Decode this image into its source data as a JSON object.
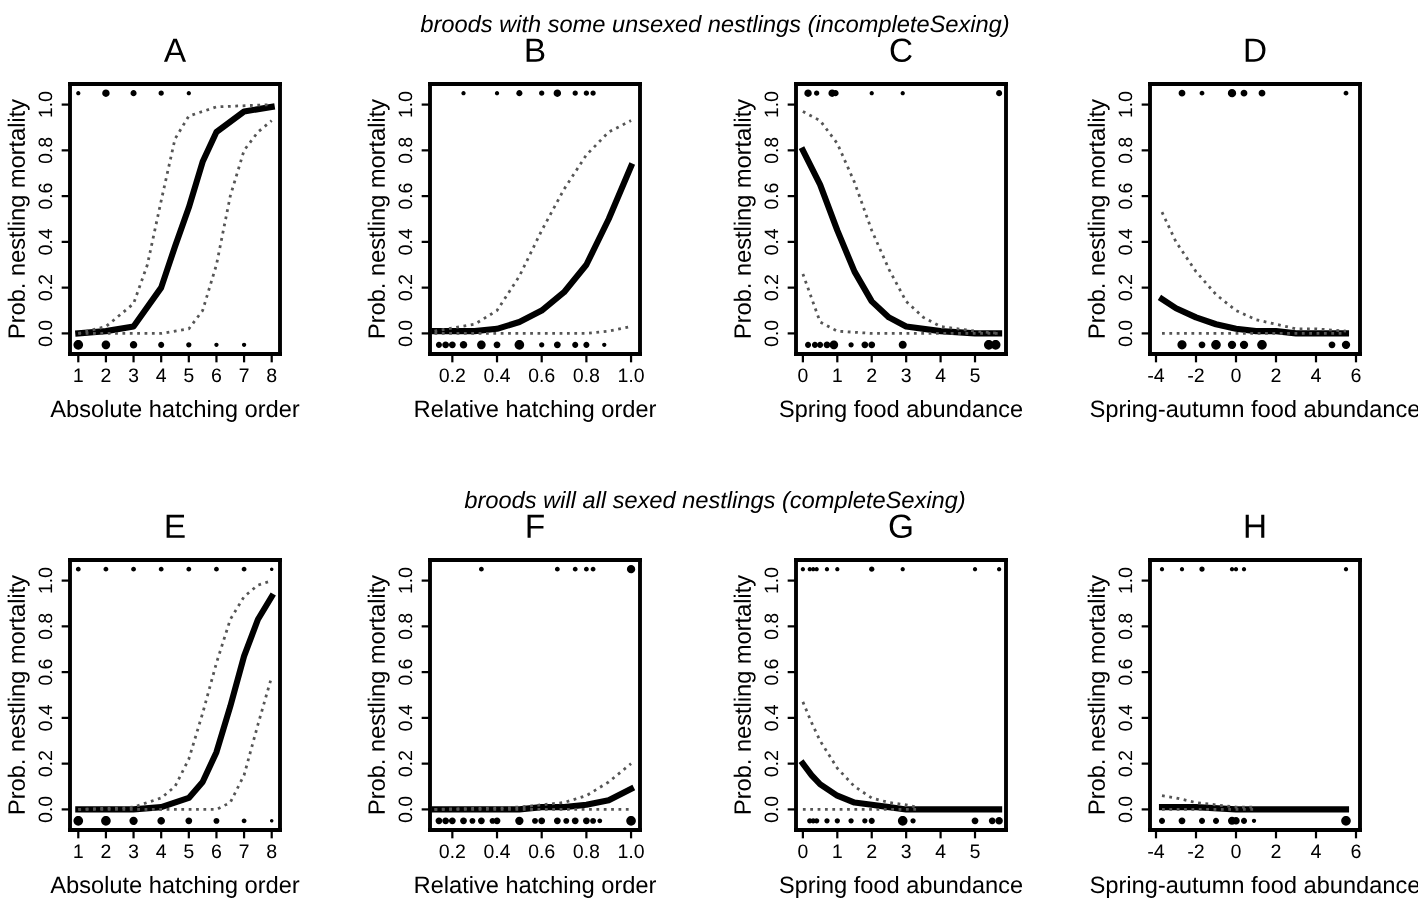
{
  "chart_data": [
    {
      "type": "other",
      "title": "broods with some unsexed nestlings (incompleteSexing)"
    },
    {
      "type": "line",
      "title": "A",
      "xlabel": "Absolute hatching order",
      "ylabel": "Prob. nestling mortality",
      "xlim": [
        0.7,
        8.3
      ],
      "xticks": [
        1,
        2,
        3,
        4,
        5,
        6,
        7,
        8
      ],
      "ylim": [
        -0.09,
        1.09
      ],
      "yticks": [
        {
          "value": 0,
          "label": "0.0"
        },
        {
          "value": 0.2,
          "label": "0.2"
        },
        {
          "value": 0.4,
          "label": "0.4"
        },
        {
          "value": 0.6,
          "label": "0.6"
        },
        {
          "value": 0.8,
          "label": "0.8"
        },
        {
          "value": 1,
          "label": "1.0"
        }
      ],
      "series": [
        {
          "color": "#000000",
          "line_style": "solid",
          "x": [
            1,
            2,
            3,
            4,
            4.5,
            5,
            5.5,
            6,
            7,
            8
          ],
          "values": [
            0.0,
            0.01,
            0.03,
            0.2,
            0.38,
            0.55,
            0.75,
            0.88,
            0.97,
            0.99
          ]
        },
        {
          "color": "#555555",
          "line_style": "dotted",
          "x": [
            1,
            2,
            3,
            3.5,
            4,
            4.5,
            5,
            6,
            8
          ],
          "values": [
            0.0,
            0.03,
            0.13,
            0.3,
            0.58,
            0.85,
            0.95,
            0.99,
            1.0
          ]
        },
        {
          "color": "#555555",
          "line_style": "dotted",
          "x": [
            1,
            4,
            5,
            5.5,
            6,
            6.5,
            7,
            7.5,
            8
          ],
          "values": [
            0,
            0.0,
            0.02,
            0.1,
            0.3,
            0.6,
            0.8,
            0.88,
            0.93
          ]
        },
        {
          "type": "bubble",
          "color": "#000000",
          "x": [
            1,
            2,
            3,
            4,
            5
          ],
          "values": [
            1.05,
            1.05,
            1.05,
            1.05,
            1.05
          ],
          "sizes": [
            0.2,
            0.6,
            0.4,
            0.3,
            0.2
          ]
        },
        {
          "type": "bubble",
          "color": "#000000",
          "x": [
            1,
            2,
            3,
            4,
            5,
            6,
            7
          ],
          "values": [
            -0.05,
            -0.05,
            -0.05,
            -0.05,
            -0.05,
            -0.05,
            -0.05
          ],
          "sizes": [
            1,
            0.8,
            0.6,
            0.4,
            0.3,
            0.2,
            0.2
          ]
        }
      ]
    },
    {
      "type": "line",
      "title": "B",
      "xlabel": "Relative hatching order",
      "ylabel": "Prob. nestling mortality",
      "xlim": [
        0.1,
        1.04
      ],
      "xticks": [
        {
          "value": 0.2,
          "label": "0.2"
        },
        {
          "value": 0.4,
          "label": "0.4"
        },
        {
          "value": 0.6,
          "label": "0.6"
        },
        {
          "value": 0.8,
          "label": "0.8"
        },
        {
          "value": 1.0,
          "label": "1.0"
        }
      ],
      "ylim": [
        -0.09,
        1.09
      ],
      "yticks": [
        {
          "value": 0,
          "label": "0.0"
        },
        {
          "value": 0.2,
          "label": "0.2"
        },
        {
          "value": 0.4,
          "label": "0.4"
        },
        {
          "value": 0.6,
          "label": "0.6"
        },
        {
          "value": 0.8,
          "label": "0.8"
        },
        {
          "value": 1,
          "label": "1.0"
        }
      ],
      "series": [
        {
          "color": "#000000",
          "line_style": "solid",
          "x": [
            0.12,
            0.3,
            0.4,
            0.5,
            0.6,
            0.7,
            0.8,
            0.9,
            1.0
          ],
          "values": [
            0.01,
            0.01,
            0.02,
            0.05,
            0.1,
            0.18,
            0.3,
            0.5,
            0.73
          ]
        },
        {
          "color": "#555555",
          "line_style": "dotted",
          "x": [
            0.12,
            0.3,
            0.4,
            0.5,
            0.6,
            0.7,
            0.8,
            0.9,
            1.0
          ],
          "values": [
            0.01,
            0.04,
            0.1,
            0.25,
            0.45,
            0.63,
            0.78,
            0.88,
            0.93
          ]
        },
        {
          "color": "#555555",
          "line_style": "dotted",
          "x": [
            0.12,
            0.8,
            0.9,
            1.0
          ],
          "values": [
            0,
            0,
            0.01,
            0.03
          ]
        },
        {
          "type": "bubble",
          "color": "#000000",
          "x": [
            0.25,
            0.4,
            0.5,
            0.6,
            0.67,
            0.75,
            0.8,
            0.83
          ],
          "values": [
            1.05,
            1.05,
            1.05,
            1.05,
            1.05,
            1.05,
            1.05,
            1.05
          ],
          "sizes": [
            0.2,
            0.2,
            0.4,
            0.3,
            0.6,
            0.3,
            0.3,
            0.3
          ]
        },
        {
          "type": "bubble",
          "color": "#000000",
          "x": [
            0.14,
            0.17,
            0.2,
            0.25,
            0.33,
            0.4,
            0.5,
            0.6,
            0.67,
            0.75,
            0.8,
            0.88
          ],
          "values": [
            -0.05,
            -0.05,
            -0.05,
            -0.05,
            -0.05,
            -0.05,
            -0.05,
            -0.05,
            -0.05,
            -0.05,
            -0.05,
            -0.05
          ],
          "sizes": [
            0.4,
            0.5,
            0.5,
            0.6,
            0.8,
            0.5,
            1,
            0.3,
            0.5,
            0.4,
            0.4,
            0.2
          ]
        }
      ]
    },
    {
      "type": "line",
      "title": "C",
      "xlabel": "Spring food abundance",
      "ylabel": "Prob. nestling mortality",
      "xlim": [
        -0.2,
        5.9
      ],
      "xticks": [
        0,
        1,
        2,
        3,
        4,
        5
      ],
      "ylim": [
        -0.09,
        1.09
      ],
      "yticks": [
        {
          "value": 0,
          "label": "0.0"
        },
        {
          "value": 0.2,
          "label": "0.2"
        },
        {
          "value": 0.4,
          "label": "0.4"
        },
        {
          "value": 0.6,
          "label": "0.6"
        },
        {
          "value": 0.8,
          "label": "0.8"
        },
        {
          "value": 1,
          "label": "1.0"
        }
      ],
      "series": [
        {
          "color": "#000000",
          "line_style": "solid",
          "x": [
            0,
            0.5,
            1,
            1.5,
            2,
            2.5,
            3,
            4,
            5,
            5.7
          ],
          "values": [
            0.8,
            0.65,
            0.45,
            0.27,
            0.14,
            0.07,
            0.03,
            0.01,
            0.0,
            0.0
          ]
        },
        {
          "color": "#555555",
          "line_style": "dotted",
          "x": [
            0,
            0.5,
            1,
            1.5,
            2,
            2.5,
            3,
            3.5,
            4,
            5,
            5.7
          ],
          "values": [
            0.97,
            0.93,
            0.83,
            0.66,
            0.45,
            0.28,
            0.14,
            0.07,
            0.03,
            0.01,
            0.0
          ]
        },
        {
          "color": "#555555",
          "line_style": "dotted",
          "x": [
            0,
            0.5,
            1,
            2,
            5.7
          ],
          "values": [
            0.26,
            0.05,
            0.01,
            0,
            0
          ]
        },
        {
          "type": "bubble",
          "color": "#000000",
          "x": [
            0.15,
            0.4,
            0.85,
            0.95,
            2,
            2.9,
            5.7
          ],
          "values": [
            1.05,
            1.05,
            1.05,
            1.05,
            1.05,
            1.05,
            1.05
          ],
          "sizes": [
            0.6,
            0.3,
            0.6,
            0.4,
            0.2,
            0.2,
            0.4
          ]
        },
        {
          "type": "bubble",
          "color": "#000000",
          "x": [
            0.15,
            0.35,
            0.5,
            0.7,
            0.9,
            1.4,
            1.8,
            2,
            2.9,
            5.4,
            5.6
          ],
          "values": [
            -0.05,
            -0.05,
            -0.05,
            -0.05,
            -0.05,
            -0.05,
            -0.05,
            -0.05,
            -0.05,
            -0.05,
            -0.05
          ],
          "sizes": [
            0.4,
            0.4,
            0.4,
            0.5,
            0.8,
            0.3,
            0.5,
            0.5,
            0.7,
            1,
            1
          ]
        }
      ]
    },
    {
      "type": "line",
      "title": "D",
      "xlabel": "Spring-autumn food abundance",
      "ylabel": "Prob. nestling mortality",
      "xlim": [
        -4.3,
        6.2
      ],
      "xticks": [
        -4,
        -2,
        0,
        2,
        4,
        6
      ],
      "ylim": [
        -0.09,
        1.09
      ],
      "yticks": [
        {
          "value": 0,
          "label": "0.0"
        },
        {
          "value": 0.2,
          "label": "0.2"
        },
        {
          "value": 0.4,
          "label": "0.4"
        },
        {
          "value": 0.6,
          "label": "0.6"
        },
        {
          "value": 0.8,
          "label": "0.8"
        },
        {
          "value": 1,
          "label": "1.0"
        }
      ],
      "series": [
        {
          "color": "#000000",
          "line_style": "solid",
          "x": [
            -3.7,
            -3,
            -2,
            -1,
            0,
            1,
            2,
            3,
            5.5
          ],
          "values": [
            0.15,
            0.11,
            0.07,
            0.04,
            0.02,
            0.01,
            0.01,
            0.0,
            0.0
          ]
        },
        {
          "color": "#555555",
          "line_style": "dotted",
          "x": [
            -3.7,
            -3,
            -2,
            -1,
            0,
            1,
            2,
            3,
            4,
            5.5
          ],
          "values": [
            0.53,
            0.4,
            0.27,
            0.17,
            0.1,
            0.06,
            0.04,
            0.02,
            0.02,
            0.01
          ]
        },
        {
          "color": "#555555",
          "line_style": "dotted",
          "x": [
            -3.7,
            5.5
          ],
          "values": [
            0,
            0
          ]
        },
        {
          "type": "bubble",
          "color": "#000000",
          "x": [
            -2.7,
            -1.7,
            -0.2,
            0.4,
            1.3,
            5.5
          ],
          "values": [
            1.05,
            1.05,
            1.05,
            1.05,
            1.05,
            1.05
          ],
          "sizes": [
            0.5,
            0.25,
            0.75,
            0.5,
            0.5,
            0.25
          ]
        },
        {
          "type": "bubble",
          "color": "#000000",
          "x": [
            -2.7,
            -1.7,
            -1,
            -0.2,
            0.4,
            1.3,
            4.8,
            5.5
          ],
          "values": [
            -0.05,
            -0.05,
            -0.05,
            -0.05,
            -0.05,
            -0.05,
            -0.05,
            -0.05
          ],
          "sizes": [
            0.9,
            0.5,
            1,
            0.75,
            0.75,
            1,
            0.5,
            0.75
          ]
        }
      ]
    },
    {
      "type": "other",
      "title": "broods will all sexed nestlings (completeSexing)"
    },
    {
      "type": "line",
      "title": "E",
      "xlabel": "Absolute hatching order",
      "ylabel": "Prob. nestling mortality",
      "xlim": [
        0.7,
        8.3
      ],
      "xticks": [
        1,
        2,
        3,
        4,
        5,
        6,
        7,
        8
      ],
      "ylim": [
        -0.09,
        1.09
      ],
      "yticks": [
        {
          "value": 0,
          "label": "0.0"
        },
        {
          "value": 0.2,
          "label": "0.2"
        },
        {
          "value": 0.4,
          "label": "0.4"
        },
        {
          "value": 0.6,
          "label": "0.6"
        },
        {
          "value": 0.8,
          "label": "0.8"
        },
        {
          "value": 1,
          "label": "1.0"
        }
      ],
      "series": [
        {
          "color": "#000000",
          "line_style": "solid",
          "x": [
            1,
            3,
            4,
            5,
            5.5,
            6,
            6.5,
            7,
            7.5,
            8
          ],
          "values": [
            0,
            0,
            0.01,
            0.05,
            0.12,
            0.25,
            0.45,
            0.67,
            0.83,
            0.93
          ]
        },
        {
          "color": "#555555",
          "line_style": "dotted",
          "x": [
            1,
            3,
            4,
            4.5,
            5,
            5.5,
            6,
            6.5,
            7,
            7.5,
            8
          ],
          "values": [
            0,
            0.01,
            0.05,
            0.1,
            0.22,
            0.42,
            0.64,
            0.83,
            0.93,
            0.98,
            1.0
          ]
        },
        {
          "color": "#555555",
          "line_style": "dotted",
          "x": [
            1,
            6,
            6.5,
            7,
            7.5,
            8
          ],
          "values": [
            0,
            0,
            0.03,
            0.15,
            0.37,
            0.58
          ]
        },
        {
          "type": "bubble",
          "color": "#000000",
          "x": [
            1,
            2,
            3,
            4,
            5,
            6,
            7,
            8
          ],
          "values": [
            1.05,
            1.05,
            1.05,
            1.05,
            1.05,
            1.05,
            1.05,
            1.05
          ],
          "sizes": [
            0.25,
            0.25,
            0.25,
            0.25,
            0.25,
            0.25,
            0.25,
            0.13
          ]
        },
        {
          "type": "bubble",
          "color": "#000000",
          "x": [
            1,
            2,
            3,
            4,
            5,
            6,
            7,
            8
          ],
          "values": [
            -0.05,
            -0.05,
            -0.05,
            -0.05,
            -0.05,
            -0.05,
            -0.05,
            -0.05
          ],
          "sizes": [
            1,
            1,
            0.75,
            0.63,
            0.5,
            0.38,
            0.25,
            0.13
          ]
        }
      ]
    },
    {
      "type": "line",
      "title": "F",
      "xlabel": "Relative hatching order",
      "ylabel": "Prob. nestling mortality",
      "xlim": [
        0.1,
        1.04
      ],
      "xticks": [
        {
          "value": 0.2,
          "label": "0.2"
        },
        {
          "value": 0.4,
          "label": "0.4"
        },
        {
          "value": 0.6,
          "label": "0.6"
        },
        {
          "value": 0.8,
          "label": "0.8"
        },
        {
          "value": 1.0,
          "label": "1.0"
        }
      ],
      "ylim": [
        -0.09,
        1.09
      ],
      "yticks": [
        {
          "value": 0,
          "label": "0.0"
        },
        {
          "value": 0.2,
          "label": "0.2"
        },
        {
          "value": 0.4,
          "label": "0.4"
        },
        {
          "value": 0.6,
          "label": "0.6"
        },
        {
          "value": 0.8,
          "label": "0.8"
        },
        {
          "value": 1,
          "label": "1.0"
        }
      ],
      "series": [
        {
          "color": "#000000",
          "line_style": "solid",
          "x": [
            0.12,
            0.5,
            0.6,
            0.7,
            0.8,
            0.9,
            1.0
          ],
          "values": [
            0,
            0,
            0.01,
            0.01,
            0.02,
            0.04,
            0.09
          ]
        },
        {
          "color": "#555555",
          "line_style": "dotted",
          "x": [
            0.12,
            0.5,
            0.6,
            0.7,
            0.8,
            0.9,
            1.0
          ],
          "values": [
            0,
            0.01,
            0.02,
            0.03,
            0.06,
            0.12,
            0.2
          ]
        },
        {
          "color": "#555555",
          "line_style": "dotted",
          "x": [
            0.12,
            1.0
          ],
          "values": [
            0,
            0
          ]
        },
        {
          "type": "bubble",
          "color": "#000000",
          "x": [
            0.33,
            0.67,
            0.75,
            0.8,
            0.83,
            1.0
          ],
          "values": [
            1.05,
            1.05,
            1.05,
            1.05,
            1.05,
            1.05
          ],
          "sizes": [
            0.25,
            0.25,
            0.25,
            0.25,
            0.25,
            0.75
          ]
        },
        {
          "type": "bubble",
          "color": "#000000",
          "x": [
            0.14,
            0.17,
            0.2,
            0.25,
            0.29,
            0.33,
            0.38,
            0.4,
            0.5,
            0.57,
            0.6,
            0.67,
            0.71,
            0.75,
            0.8,
            0.83,
            0.86,
            1.0
          ],
          "values": [
            -0.05,
            -0.05,
            -0.05,
            -0.05,
            -0.05,
            -0.05,
            -0.05,
            -0.05,
            -0.05,
            -0.05,
            -0.05,
            -0.05,
            -0.05,
            -0.05,
            -0.05,
            -0.05,
            -0.05,
            -0.05
          ],
          "sizes": [
            0.5,
            0.5,
            0.5,
            0.5,
            0.38,
            0.5,
            0.38,
            0.5,
            0.75,
            0.38,
            0.5,
            0.5,
            0.38,
            0.5,
            0.5,
            0.38,
            0.25,
            1
          ]
        }
      ]
    },
    {
      "type": "line",
      "title": "G",
      "xlabel": "Spring food abundance",
      "ylabel": "Prob. nestling mortality",
      "xlim": [
        -0.2,
        5.9
      ],
      "xticks": [
        0,
        1,
        2,
        3,
        4,
        5
      ],
      "ylim": [
        -0.09,
        1.09
      ],
      "yticks": [
        {
          "value": 0,
          "label": "0.0"
        },
        {
          "value": 0.2,
          "label": "0.2"
        },
        {
          "value": 0.4,
          "label": "0.4"
        },
        {
          "value": 0.6,
          "label": "0.6"
        },
        {
          "value": 0.8,
          "label": "0.8"
        },
        {
          "value": 1,
          "label": "1.0"
        }
      ],
      "series": [
        {
          "color": "#000000",
          "line_style": "solid",
          "x": [
            0,
            0.25,
            0.5,
            1,
            1.5,
            2,
            2.5,
            3,
            5.7
          ],
          "values": [
            0.2,
            0.15,
            0.11,
            0.06,
            0.03,
            0.02,
            0.01,
            0,
            0
          ]
        },
        {
          "color": "#555555",
          "line_style": "dotted",
          "x": [
            0,
            0.25,
            0.5,
            1,
            1.5,
            2,
            2.5,
            3,
            3.3
          ],
          "values": [
            0.47,
            0.38,
            0.3,
            0.18,
            0.1,
            0.05,
            0.03,
            0.02,
            0.01
          ]
        },
        {
          "color": "#555555",
          "line_style": "dotted",
          "x": [
            0,
            3.3
          ],
          "values": [
            0,
            0
          ]
        },
        {
          "type": "bubble",
          "color": "#000000",
          "x": [
            0,
            0.2,
            0.3,
            0.4,
            0.7,
            1,
            2,
            2.9,
            5,
            5.7
          ],
          "values": [
            1.05,
            1.05,
            1.05,
            1.05,
            1.05,
            1.05,
            1.05,
            1.05,
            1.05,
            1.05
          ],
          "sizes": [
            0.2,
            0.2,
            0.2,
            0.2,
            0.2,
            0.2,
            0.3,
            0.2,
            0.2,
            0.2
          ]
        },
        {
          "type": "bubble",
          "color": "#000000",
          "x": [
            0.2,
            0.3,
            0.4,
            0.7,
            1,
            1.4,
            1.8,
            2,
            2.9,
            3.2,
            5,
            5.5,
            5.7
          ],
          "values": [
            -0.05,
            -0.05,
            -0.05,
            -0.05,
            -0.05,
            -0.05,
            -0.05,
            -0.05,
            -0.05,
            -0.05,
            -0.05,
            -0.05,
            -0.05
          ],
          "sizes": [
            0.3,
            0.3,
            0.3,
            0.3,
            0.3,
            0.3,
            0.3,
            0.4,
            1,
            0.3,
            0.5,
            0.5,
            0.6
          ]
        }
      ]
    },
    {
      "type": "line",
      "title": "H",
      "xlabel": "Spring-autumn food abundance",
      "ylabel": "Prob. nestling mortality",
      "xlim": [
        -4.3,
        6.2
      ],
      "xticks": [
        -4,
        -2,
        0,
        2,
        4,
        6
      ],
      "ylim": [
        -0.09,
        1.09
      ],
      "yticks": [
        {
          "value": 0,
          "label": "0.0"
        },
        {
          "value": 0.2,
          "label": "0.2"
        },
        {
          "value": 0.4,
          "label": "0.4"
        },
        {
          "value": 0.6,
          "label": "0.6"
        },
        {
          "value": 0.8,
          "label": "0.8"
        },
        {
          "value": 1,
          "label": "1.0"
        }
      ],
      "series": [
        {
          "color": "#000000",
          "line_style": "solid",
          "x": [
            -3.7,
            -2,
            0,
            2,
            5.5
          ],
          "values": [
            0.01,
            0.01,
            0,
            0,
            0
          ]
        },
        {
          "color": "#555555",
          "line_style": "dotted",
          "x": [
            -3.7,
            -3,
            -2,
            -1,
            0,
            1
          ],
          "values": [
            0.06,
            0.05,
            0.03,
            0.02,
            0.01,
            0.01
          ]
        },
        {
          "color": "#555555",
          "line_style": "dotted",
          "x": [
            -3.7,
            1
          ],
          "values": [
            0,
            0
          ]
        },
        {
          "type": "bubble",
          "color": "#000000",
          "x": [
            -3.7,
            -2.7,
            -1.7,
            -0.2,
            0,
            0.4,
            5.5
          ],
          "values": [
            1.05,
            1.05,
            1.05,
            1.05,
            1.05,
            1.05,
            1.05
          ],
          "sizes": [
            0.2,
            0.2,
            0.3,
            0.2,
            0.2,
            0.2,
            0.2
          ]
        },
        {
          "type": "bubble",
          "color": "#000000",
          "x": [
            -3.7,
            -2.7,
            -1.7,
            -1,
            -0.2,
            0,
            0.4,
            0.9,
            5.5
          ],
          "values": [
            -0.05,
            -0.05,
            -0.05,
            -0.05,
            -0.05,
            -0.05,
            -0.05,
            -0.05,
            -0.05
          ],
          "sizes": [
            0.4,
            0.5,
            0.4,
            0.4,
            0.7,
            0.6,
            0.4,
            0.2,
            1
          ]
        }
      ]
    }
  ]
}
